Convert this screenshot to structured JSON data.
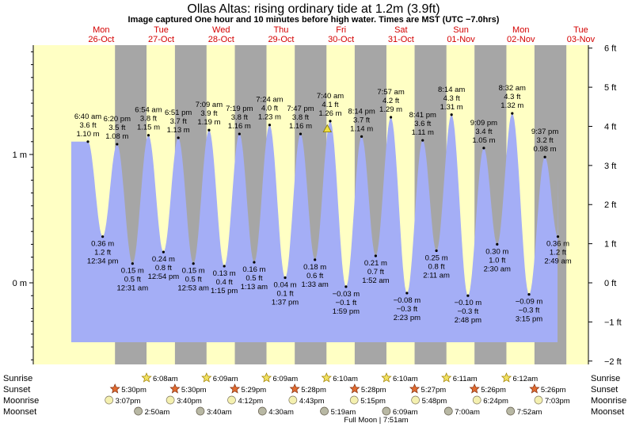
{
  "header": {
    "title": "Ollas Altas: rising  ordinary tide at 1.2m (3.9ft)",
    "subtitle": "Image captured One hour and 10 minutes before high water. Times are MST (UTC −7.0hrs)"
  },
  "colors": {
    "day": "#ffffc4",
    "night": "#a6a6a6",
    "water": "#a4aef6",
    "day_label": "#d40000",
    "sun": "#f0e060",
    "sunset": "#e06a30",
    "moon": "#f4f0b0",
    "moonset": "#b8b8a4"
  },
  "chart_data": {
    "type": "area",
    "title": "Ollas Altas: rising  ordinary tide at 1.2m (3.9ft)",
    "ylabel_left_unit": "m",
    "ylabel_right_unit": "ft",
    "left_ticks": [
      "1 m",
      "0 m"
    ],
    "right_ticks": [
      "6 ft",
      "5 ft",
      "4 ft",
      "3 ft",
      "2 ft",
      "1 ft",
      "0 ft",
      "−1 ft",
      "−2 ft"
    ],
    "days": [
      {
        "dow": "Mon",
        "date": "26-Oct"
      },
      {
        "dow": "Tue",
        "date": "27-Oct"
      },
      {
        "dow": "Wed",
        "date": "28-Oct"
      },
      {
        "dow": "Thu",
        "date": "29-Oct"
      },
      {
        "dow": "Fri",
        "date": "30-Oct"
      },
      {
        "dow": "Sat",
        "date": "31-Oct"
      },
      {
        "dow": "Sun",
        "date": "01-Nov"
      },
      {
        "dow": "Mon",
        "date": "02-Nov"
      },
      {
        "dow": "Tue",
        "date": "03-Nov"
      }
    ],
    "tides": [
      {
        "type": "high",
        "date": "2020-10-26",
        "time": "6:40 am",
        "ft": "3.6 ft",
        "m": 1.1,
        "ml": "1.10 m"
      },
      {
        "type": "low",
        "date": "2020-10-26",
        "time": "12:34 pm",
        "ft": "1.2 ft",
        "m": 0.36,
        "ml": "0.36 m"
      },
      {
        "type": "high",
        "date": "2020-10-26",
        "time": "6:20 pm",
        "ft": "3.5 ft",
        "m": 1.08,
        "ml": "1.08 m"
      },
      {
        "type": "low",
        "date": "2020-10-27",
        "time": "12:31 am",
        "ft": "0.5 ft",
        "m": 0.15,
        "ml": "0.15 m"
      },
      {
        "type": "high",
        "date": "2020-10-27",
        "time": "6:54 am",
        "ft": "3.8 ft",
        "m": 1.15,
        "ml": "1.15 m"
      },
      {
        "type": "low",
        "date": "2020-10-27",
        "time": "12:54 pm",
        "ft": "0.8 ft",
        "m": 0.24,
        "ml": "0.24 m"
      },
      {
        "type": "high",
        "date": "2020-10-27",
        "time": "6:51 pm",
        "ft": "3.7 ft",
        "m": 1.13,
        "ml": "1.13 m"
      },
      {
        "type": "low",
        "date": "2020-10-28",
        "time": "12:53 am",
        "ft": "0.5 ft",
        "m": 0.15,
        "ml": "0.15 m"
      },
      {
        "type": "high",
        "date": "2020-10-28",
        "time": "7:09 am",
        "ft": "3.9 ft",
        "m": 1.19,
        "ml": "1.19 m"
      },
      {
        "type": "low",
        "date": "2020-10-28",
        "time": "1:15 pm",
        "ft": "0.4 ft",
        "m": 0.13,
        "ml": "0.13 m"
      },
      {
        "type": "high",
        "date": "2020-10-28",
        "time": "7:19 pm",
        "ft": "3.8 ft",
        "m": 1.16,
        "ml": "1.16 m"
      },
      {
        "type": "low",
        "date": "2020-10-29",
        "time": "1:13 am",
        "ft": "0.5 ft",
        "m": 0.16,
        "ml": "0.16 m"
      },
      {
        "type": "high",
        "date": "2020-10-29",
        "time": "7:24 am",
        "ft": "4.0 ft",
        "m": 1.23,
        "ml": "1.23 m"
      },
      {
        "type": "low",
        "date": "2020-10-29",
        "time": "1:37 pm",
        "ft": "0.1 ft",
        "m": 0.04,
        "ml": "0.04 m"
      },
      {
        "type": "high",
        "date": "2020-10-29",
        "time": "7:47 pm",
        "ft": "3.8 ft",
        "m": 1.16,
        "ml": "1.16 m"
      },
      {
        "type": "low",
        "date": "2020-10-30",
        "time": "1:33 am",
        "ft": "0.6 ft",
        "m": 0.18,
        "ml": "0.18 m"
      },
      {
        "type": "high",
        "date": "2020-10-30",
        "time": "7:40 am",
        "ft": "4.1 ft",
        "m": 1.26,
        "ml": "1.26 m"
      },
      {
        "type": "low",
        "date": "2020-10-30",
        "time": "1:59 pm",
        "ft": "−0.1 ft",
        "m": -0.03,
        "ml": "−0.03 m"
      },
      {
        "type": "high",
        "date": "2020-10-30",
        "time": "8:14 pm",
        "ft": "3.7 ft",
        "m": 1.14,
        "ml": "1.14 m"
      },
      {
        "type": "low",
        "date": "2020-10-31",
        "time": "1:52 am",
        "ft": "0.7 ft",
        "m": 0.21,
        "ml": "0.21 m"
      },
      {
        "type": "high",
        "date": "2020-10-31",
        "time": "7:57 am",
        "ft": "4.2 ft",
        "m": 1.29,
        "ml": "1.29 m"
      },
      {
        "type": "low",
        "date": "2020-10-31",
        "time": "2:23 pm",
        "ft": "−0.3 ft",
        "m": -0.08,
        "ml": "−0.08 m"
      },
      {
        "type": "high",
        "date": "2020-10-31",
        "time": "8:41 pm",
        "ft": "3.6 ft",
        "m": 1.11,
        "ml": "1.11 m"
      },
      {
        "type": "low",
        "date": "2020-11-01",
        "time": "2:11 am",
        "ft": "0.8 ft",
        "m": 0.25,
        "ml": "0.25 m"
      },
      {
        "type": "high",
        "date": "2020-11-01",
        "time": "8:14 am",
        "ft": "4.3 ft",
        "m": 1.31,
        "ml": "1.31 m"
      },
      {
        "type": "low",
        "date": "2020-11-01",
        "time": "2:48 pm",
        "ft": "−0.3 ft",
        "m": -0.1,
        "ml": "−0.10 m"
      },
      {
        "type": "high",
        "date": "2020-11-01",
        "time": "9:09 pm",
        "ft": "3.4 ft",
        "m": 1.05,
        "ml": "1.05 m"
      },
      {
        "type": "low",
        "date": "2020-11-02",
        "time": "2:30 am",
        "ft": "1.0 ft",
        "m": 0.3,
        "ml": "0.30 m"
      },
      {
        "type": "high",
        "date": "2020-11-02",
        "time": "8:32 am",
        "ft": "4.3 ft",
        "m": 1.32,
        "ml": "1.32 m"
      },
      {
        "type": "low",
        "date": "2020-11-02",
        "time": "3:15 pm",
        "ft": "−0.3 ft",
        "m": -0.09,
        "ml": "−0.09 m"
      },
      {
        "type": "high",
        "date": "2020-11-02",
        "time": "9:37 pm",
        "ft": "3.2 ft",
        "m": 0.98,
        "ml": "0.98 m"
      },
      {
        "type": "low",
        "date": "2020-11-03",
        "time": "2:49 am",
        "ft": "1.2 ft",
        "m": 0.36,
        "ml": "0.36 m"
      }
    ],
    "current": {
      "date": "2020-10-30",
      "time": "6:30 am",
      "m": 1.2
    }
  },
  "rows": {
    "sunrise_label": "Sunrise",
    "sunset_label": "Sunset",
    "moonrise_label": "Moonrise",
    "moonset_label": "Moonset",
    "sunrise": [
      {
        "date": "2020-10-27",
        "time": "6:08am"
      },
      {
        "date": "2020-10-28",
        "time": "6:09am"
      },
      {
        "date": "2020-10-29",
        "time": "6:09am"
      },
      {
        "date": "2020-10-30",
        "time": "6:10am"
      },
      {
        "date": "2020-10-31",
        "time": "6:10am"
      },
      {
        "date": "2020-11-01",
        "time": "6:11am"
      },
      {
        "date": "2020-11-02",
        "time": "6:12am"
      }
    ],
    "sunset": [
      {
        "date": "2020-10-26",
        "time": "5:30pm"
      },
      {
        "date": "2020-10-27",
        "time": "5:30pm"
      },
      {
        "date": "2020-10-28",
        "time": "5:29pm"
      },
      {
        "date": "2020-10-29",
        "time": "5:28pm"
      },
      {
        "date": "2020-10-30",
        "time": "5:28pm"
      },
      {
        "date": "2020-10-31",
        "time": "5:27pm"
      },
      {
        "date": "2020-11-01",
        "time": "5:26pm"
      },
      {
        "date": "2020-11-02",
        "time": "5:26pm"
      }
    ],
    "moonrise": [
      {
        "date": "2020-10-26",
        "time": "3:07pm"
      },
      {
        "date": "2020-10-27",
        "time": "3:40pm"
      },
      {
        "date": "2020-10-28",
        "time": "4:12pm"
      },
      {
        "date": "2020-10-29",
        "time": "4:43pm"
      },
      {
        "date": "2020-10-30",
        "time": "5:15pm"
      },
      {
        "date": "2020-10-31",
        "time": "5:48pm"
      },
      {
        "date": "2020-11-01",
        "time": "6:24pm"
      },
      {
        "date": "2020-11-02",
        "time": "7:03pm"
      }
    ],
    "moonset": [
      {
        "date": "2020-10-27",
        "time": "2:50am"
      },
      {
        "date": "2020-10-28",
        "time": "3:40am"
      },
      {
        "date": "2020-10-29",
        "time": "4:30am"
      },
      {
        "date": "2020-10-30",
        "time": "5:19am"
      },
      {
        "date": "2020-10-31",
        "time": "6:09am"
      },
      {
        "date": "2020-11-01",
        "time": "7:00am"
      },
      {
        "date": "2020-11-02",
        "time": "7:52am"
      }
    ],
    "full_moon": "Full Moon | 7:51am"
  }
}
